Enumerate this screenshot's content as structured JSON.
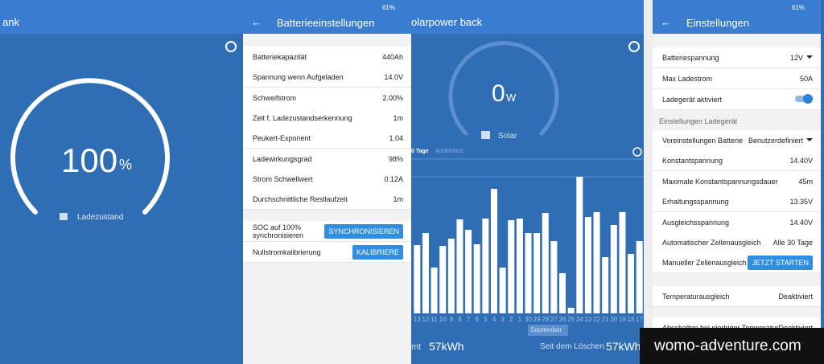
{
  "panels": [
    {
      "title": "ank",
      "gauge": {
        "value": 100,
        "unit": "%",
        "label": "Ladezustand"
      }
    },
    {
      "title": "Batterieeinstellungen",
      "status": "61%",
      "rows": [
        [
          "Batteriekapazität",
          "440Ah"
        ],
        [
          "Spannung wenn Aufgeladen",
          "14.0V"
        ],
        [
          "Schweifstrom",
          "2.00%"
        ],
        [
          "Zeit f. Ladezustandserkennung",
          "1m"
        ],
        [
          "Peukert-Exponent",
          "1.04"
        ],
        [
          "Ladewirkungsgrad",
          "98%"
        ],
        [
          "Strom Schwellwert",
          "0.12A"
        ],
        [
          "Durchschnittliche Restlaufzeit",
          "1m"
        ]
      ],
      "actions": [
        [
          "SOC auf 100% synchronisieren",
          "SYNCHRONISIEREN"
        ],
        [
          "Nullstromkalibrierung",
          "KALIBRIERE"
        ]
      ]
    },
    {
      "title": "olarpower back",
      "gauge": {
        "value": 0,
        "unit": "W",
        "label": "Solar"
      },
      "tabs": [
        "0 Tage",
        "Ausführlich"
      ],
      "chart": {
        "type": "bar",
        "categories": [
          "13",
          "12",
          "11",
          "10",
          "9",
          "8",
          "7",
          "6",
          "5",
          "4",
          "3",
          "2",
          "1",
          "30",
          "29",
          "28",
          "27",
          "26",
          "25",
          "24",
          "23",
          "22",
          "21",
          "20",
          "19",
          "18",
          "17"
        ],
        "values": [
          85,
          100,
          57,
          84,
          93,
          117,
          104,
          86,
          118,
          155,
          57,
          116,
          118,
          100,
          100,
          125,
          90,
          50,
          7,
          170,
          120,
          126,
          70,
          110,
          126,
          74,
          90
        ],
        "color": "#ffffff",
        "month": "September"
      },
      "footer": [
        "mt",
        "57kWh",
        "Seit dem Löschen",
        "57kWh"
      ]
    },
    {
      "title": "Einstellungen",
      "status": "61%",
      "rows": [
        [
          "Batteriespannung",
          "12V"
        ],
        [
          "Max Ladestrom",
          "50A"
        ],
        [
          "Ladegerät aktiviert",
          ""
        ]
      ],
      "section": "Einstellungen Ladegerät",
      "rows2": [
        [
          "Voreinstellungen Batterie",
          "Benutzerdefiniert"
        ],
        [
          "Konstantspannung",
          "14.40V"
        ],
        [
          "Maximale Konstantspannungsdauer",
          "45m"
        ],
        [
          "Erhaltungsspannung",
          "13.35V"
        ],
        [
          "Ausgleichsspannung",
          "14.40V"
        ],
        [
          "Automatischer Zellenausgleich",
          "Alle 30 Tage"
        ],
        [
          "Manueller Zellenausgleich",
          "JETZT STARTEN"
        ]
      ],
      "rows3": [
        [
          "Temperaturausgleich",
          "Deaktiviert"
        ],
        [
          "Abschalten bei niedriger Temperatur",
          "Deaktiviert"
        ]
      ]
    }
  ],
  "watermark": "womo-adventure.com"
}
